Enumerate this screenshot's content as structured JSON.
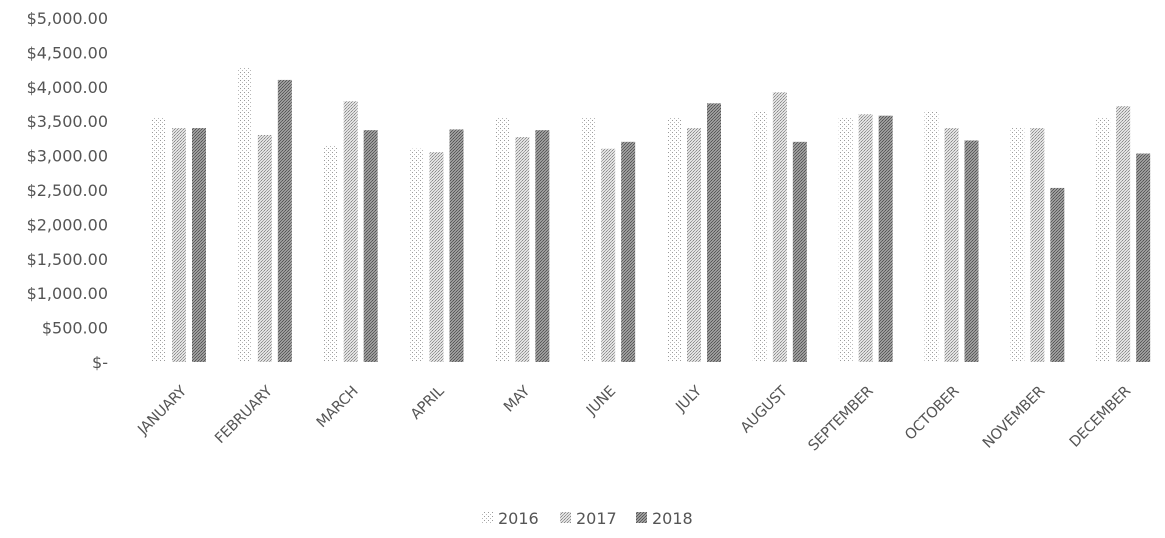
{
  "chart_data": {
    "type": "bar",
    "title": "",
    "xlabel": "",
    "ylabel": "",
    "categories": [
      "JANUARY",
      "FEBRUARY",
      "MARCH",
      "APRIL",
      "MAY",
      "JUNE",
      "JULY",
      "AUGUST",
      "SEPTEMBER",
      "OCTOBER",
      "NOVEMBER",
      "DECEMBER"
    ],
    "series": [
      {
        "name": "2016",
        "color": "#dcdcdc",
        "values": [
          3550,
          4270,
          3150,
          3100,
          3550,
          3550,
          3550,
          3650,
          3560,
          3650,
          3400,
          3550
        ]
      },
      {
        "name": "2017",
        "color": "#b4b4b4",
        "values": [
          3400,
          3300,
          3790,
          3050,
          3270,
          3100,
          3400,
          3920,
          3600,
          3400,
          3400,
          3720
        ]
      },
      {
        "name": "2018",
        "color": "#787878",
        "values": [
          3400,
          4100,
          3370,
          3380,
          3370,
          3200,
          3760,
          3200,
          3580,
          3220,
          2530,
          3030
        ]
      }
    ],
    "ylim": [
      0,
      5000
    ],
    "ytick_labels": [
      "$-",
      "$500.00",
      "$1,000.00",
      "$1,500.00",
      "$2,000.00",
      "$2,500.00",
      "$3,000.00",
      "$3,500.00",
      "$4,000.00",
      "$4,500.00",
      "$5,000.00"
    ],
    "grid": false,
    "legend_position": "bottom"
  }
}
